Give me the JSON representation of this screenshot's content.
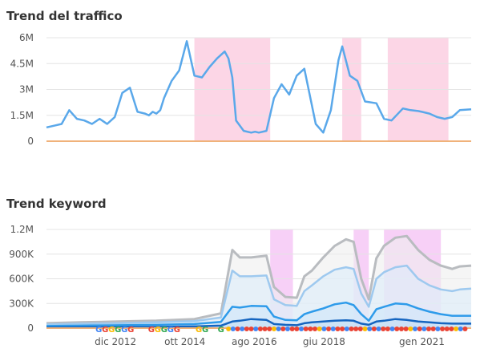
{
  "sections": {
    "traffic_title": "Trend del traffico",
    "keyword_title": "Trend keyword"
  },
  "colors": {
    "traffic_line": "#5aa8ea",
    "baseline": "#f0b27a",
    "highlight_pink": "#fbcfe2",
    "highlight_magenta": "#f6c8f6",
    "series_gray": "#b9bcc0",
    "series_lightblue": "#9ec9ef",
    "series_blue": "#2e9bea",
    "series_darkblue": "#1565c0"
  },
  "chart_data": [
    {
      "type": "line",
      "title": "Trend del traffico",
      "y_ticks": [
        "0",
        "1.5M",
        "3M",
        "4.5M",
        "6M"
      ],
      "y_tick_values": [
        0,
        1500000,
        3000000,
        4500000,
        6000000
      ],
      "ylim": [
        0,
        6000000
      ],
      "xlim": [
        2011.1,
        2022.3
      ],
      "grid": true,
      "highlight_ranges": [
        [
          2015.0,
          2017.0
        ],
        [
          2018.9,
          2019.4
        ],
        [
          2020.1,
          2021.7
        ]
      ],
      "series": [
        {
          "values_x": [
            2011.1,
            2011.3,
            2011.5,
            2011.7,
            2011.9,
            2012.1,
            2012.3,
            2012.5,
            2012.7,
            2012.9,
            2013.1,
            2013.3,
            2013.5,
            2013.7,
            2013.8,
            2013.9,
            2014.0,
            2014.1,
            2014.2,
            2014.4,
            2014.6,
            2014.8,
            2015.0,
            2015.2,
            2015.4,
            2015.6,
            2015.8,
            2015.9,
            2016.0,
            2016.1,
            2016.3,
            2016.5,
            2016.6,
            2016.7,
            2016.9,
            2017.1,
            2017.3,
            2017.5,
            2017.7,
            2017.9,
            2018.2,
            2018.4,
            2018.6,
            2018.8,
            2018.9,
            2019.1,
            2019.3,
            2019.5,
            2019.8,
            2020.0,
            2020.2,
            2020.5,
            2020.7,
            2020.9,
            2021.0,
            2021.2,
            2021.4,
            2021.6,
            2021.8,
            2022.0,
            2022.3
          ],
          "values": [
            800000,
            900000,
            1000000,
            1800000,
            1300000,
            1200000,
            1000000,
            1300000,
            1000000,
            1400000,
            2800000,
            3100000,
            1700000,
            1600000,
            1500000,
            1700000,
            1600000,
            1800000,
            2500000,
            3500000,
            4100000,
            5800000,
            3800000,
            3700000,
            4300000,
            4800000,
            5200000,
            4800000,
            3700000,
            1200000,
            600000,
            500000,
            550000,
            500000,
            600000,
            2500000,
            3300000,
            2700000,
            3800000,
            4200000,
            1000000,
            500000,
            1800000,
            4700000,
            5500000,
            3800000,
            3500000,
            2300000,
            2200000,
            1300000,
            1200000,
            1900000,
            1800000,
            1750000,
            1700000,
            1600000,
            1400000,
            1300000,
            1400000,
            1800000,
            1850000
          ]
        }
      ]
    },
    {
      "type": "area",
      "title": "Trend keyword",
      "y_ticks": [
        "0",
        "300K",
        "600K",
        "900K",
        "1.2M"
      ],
      "y_tick_values": [
        0,
        300000,
        600000,
        900000,
        1200000
      ],
      "ylim": [
        0,
        1200000
      ],
      "x_ticks": [
        "dic 2012",
        "ott 2014",
        "ago 2016",
        "giu 2018",
        "gen 2021"
      ],
      "x_tick_positions": [
        2012.92,
        2014.75,
        2016.58,
        2018.42,
        2021.0
      ],
      "xlim": [
        2011.1,
        2022.3
      ],
      "grid": true,
      "highlight_ranges": [
        [
          2017.0,
          2017.6
        ],
        [
          2019.2,
          2019.6
        ],
        [
          2020.0,
          2021.5
        ]
      ],
      "x": [
        2011.1,
        2012.0,
        2013.0,
        2014.0,
        2015.0,
        2015.7,
        2016.0,
        2016.2,
        2016.5,
        2016.9,
        2017.1,
        2017.4,
        2017.7,
        2017.9,
        2018.1,
        2018.4,
        2018.7,
        2019.0,
        2019.2,
        2019.4,
        2019.6,
        2019.8,
        2020.0,
        2020.3,
        2020.6,
        2020.9,
        2021.2,
        2021.5,
        2021.8,
        2022.0,
        2022.3
      ],
      "series": [
        {
          "values": [
            60000,
            70000,
            80000,
            90000,
            110000,
            180000,
            950000,
            860000,
            860000,
            880000,
            500000,
            380000,
            370000,
            630000,
            700000,
            860000,
            1000000,
            1080000,
            1050000,
            600000,
            350000,
            850000,
            1000000,
            1100000,
            1120000,
            950000,
            830000,
            760000,
            720000,
            750000,
            760000
          ]
        },
        {
          "values": [
            45000,
            55000,
            60000,
            70000,
            85000,
            130000,
            700000,
            630000,
            630000,
            640000,
            350000,
            280000,
            270000,
            450000,
            520000,
            630000,
            710000,
            740000,
            720000,
            420000,
            260000,
            600000,
            680000,
            740000,
            760000,
            600000,
            520000,
            470000,
            450000,
            470000,
            480000
          ]
        },
        {
          "values": [
            25000,
            30000,
            35000,
            40000,
            50000,
            75000,
            260000,
            250000,
            270000,
            265000,
            140000,
            100000,
            95000,
            170000,
            200000,
            240000,
            290000,
            310000,
            280000,
            170000,
            90000,
            230000,
            260000,
            300000,
            290000,
            240000,
            200000,
            170000,
            150000,
            150000,
            150000
          ]
        },
        {
          "values": [
            8000,
            10000,
            12000,
            15000,
            20000,
            30000,
            80000,
            90000,
            110000,
            100000,
            50000,
            40000,
            35000,
            60000,
            70000,
            80000,
            90000,
            95000,
            90000,
            55000,
            40000,
            80000,
            90000,
            110000,
            100000,
            80000,
            70000,
            60000,
            55000,
            55000,
            55000
          ]
        }
      ],
      "markers": [
        {
          "at": 2012.9,
          "label": "GGGGGG"
        },
        {
          "at": 2014.2,
          "label": "GGGGG"
        },
        {
          "at": 2015.2,
          "label": "GG"
        },
        {
          "at": 2015.7,
          "label": "G"
        }
      ]
    }
  ]
}
